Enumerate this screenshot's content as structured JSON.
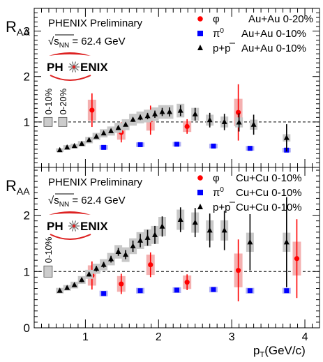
{
  "chart_data": [
    {
      "type": "scatter",
      "panel": "top",
      "ylabel": "R",
      "ylabel_sub": "AA",
      "ylim": [
        0,
        3.5
      ],
      "xlim": [
        0.3,
        4.2
      ],
      "yticks": [
        "1",
        "2",
        "3"
      ],
      "preliminary": "PHENIX Preliminary",
      "energy_prefix": "√s",
      "energy_sub": "NN",
      "energy_suffix": " = 62.4 GeV",
      "logo_left": "PH",
      "logo_right": "ENIX",
      "norm_labels": [
        "0-10%",
        "0-20%"
      ],
      "norm_boxes": [
        0.1,
        0.1
      ],
      "reference_line": 1.0,
      "series": [
        {
          "name_sym": "φ",
          "name_sup": "",
          "name_rest": "",
          "label": "Au+Au 0-20%",
          "marker": "circle",
          "color": "#ff0000",
          "box_color": "#f4b0b0",
          "x": [
            1.09,
            1.49,
            1.89,
            2.39,
            3.09
          ],
          "y": [
            1.26,
            0.77,
            1.04,
            0.9,
            1.21
          ],
          "err": [
            0.37,
            0.22,
            0.32,
            0.16,
            0.62
          ],
          "sys": [
            0.23,
            0.16,
            0.23,
            0.12,
            0.3
          ]
        },
        {
          "name_sym": "π",
          "name_sup": "0",
          "name_rest": "",
          "label": "Au+Au 0-10%",
          "marker": "square",
          "color": "#0000ff",
          "box_color": "#b0b0f4",
          "x": [
            1.25,
            1.75,
            2.25,
            2.75,
            3.25,
            3.75
          ],
          "y": [
            0.44,
            0.5,
            0.51,
            0.47,
            0.42,
            0.38
          ],
          "err": [
            0.02,
            0.02,
            0.02,
            0.03,
            0.03,
            0.03
          ],
          "sys": [
            0.05,
            0.05,
            0.05,
            0.05,
            0.05,
            0.05
          ]
        },
        {
          "name_sym": "p+",
          "name_sup": "",
          "name_rest": "p",
          "label": "Au+Au 0-10%",
          "marker": "triangle",
          "color": "#000000",
          "box_color": "#c8c8c8",
          "x": [
            0.65,
            0.75,
            0.85,
            0.95,
            1.05,
            1.15,
            1.25,
            1.35,
            1.45,
            1.55,
            1.65,
            1.75,
            1.85,
            1.95,
            2.05,
            2.15,
            2.3,
            2.5,
            2.7,
            2.9,
            3.1,
            3.3,
            3.75
          ],
          "y": [
            0.38,
            0.44,
            0.47,
            0.52,
            0.6,
            0.68,
            0.75,
            0.8,
            0.87,
            0.94,
            1.05,
            1.1,
            1.13,
            1.17,
            1.22,
            1.22,
            1.25,
            1.17,
            1.04,
            1.0,
            0.99,
            0.94,
            0.65
          ],
          "err": [
            0.02,
            0.02,
            0.02,
            0.02,
            0.03,
            0.03,
            0.03,
            0.03,
            0.04,
            0.04,
            0.05,
            0.06,
            0.07,
            0.08,
            0.09,
            0.1,
            0.12,
            0.14,
            0.16,
            0.18,
            0.2,
            0.22,
            0.3
          ],
          "sys": [
            0.04,
            0.05,
            0.05,
            0.06,
            0.07,
            0.08,
            0.09,
            0.1,
            0.11,
            0.12,
            0.13,
            0.13,
            0.14,
            0.15,
            0.15,
            0.15,
            0.15,
            0.14,
            0.12,
            0.12,
            0.11,
            0.11,
            0.08
          ]
        }
      ]
    },
    {
      "type": "scatter",
      "panel": "bottom",
      "ylabel": "R",
      "ylabel_sub": "AA",
      "xlabel": "p",
      "xlabel_sub": "T",
      "xlabel_rest": "(GeV/c)",
      "ylim": [
        0,
        2.85
      ],
      "xlim": [
        0.3,
        4.2
      ],
      "xticks": [
        "1",
        "2",
        "3",
        "4"
      ],
      "yticks": [
        "0",
        "1",
        "2"
      ],
      "preliminary": "PHENIX Preliminary",
      "energy_prefix": "√s",
      "energy_sub": "NN",
      "energy_suffix": " = 62.4 GeV",
      "logo_left": "PH",
      "logo_right": "ENIX",
      "norm_labels": [
        "0-10%"
      ],
      "norm_boxes": [
        0.1
      ],
      "reference_line": 1.0,
      "series": [
        {
          "name_sym": "φ",
          "name_sup": "",
          "name_rest": "",
          "label": "Cu+Cu 0-10%",
          "marker": "circle",
          "color": "#ff0000",
          "box_color": "#f4b0b0",
          "x": [
            1.09,
            1.49,
            1.89,
            2.39,
            3.09,
            3.89
          ],
          "y": [
            0.93,
            0.78,
            1.12,
            0.81,
            1.02,
            1.23
          ],
          "err": [
            0.25,
            0.18,
            0.22,
            0.14,
            0.55,
            0.7
          ],
          "sys": [
            0.18,
            0.14,
            0.18,
            0.12,
            0.3,
            0.3
          ]
        },
        {
          "name_sym": "π",
          "name_sup": "0",
          "name_rest": "",
          "label": "Cu+Cu 0-10%",
          "marker": "square",
          "color": "#0000ff",
          "box_color": "#b0b0f4",
          "x": [
            1.25,
            1.75,
            2.25,
            2.75,
            3.25,
            3.75
          ],
          "y": [
            0.61,
            0.66,
            0.67,
            0.68,
            0.66,
            0.66
          ],
          "err": [
            0.02,
            0.02,
            0.02,
            0.03,
            0.03,
            0.03
          ],
          "sys": [
            0.05,
            0.05,
            0.05,
            0.05,
            0.05,
            0.05
          ]
        },
        {
          "name_sym": "p+",
          "name_sup": "",
          "name_rest": "p",
          "label": "Cu+Cu 0-10%",
          "marker": "triangle",
          "color": "#000000",
          "box_color": "#c8c8c8",
          "x": [
            0.65,
            0.75,
            0.85,
            0.95,
            1.05,
            1.15,
            1.25,
            1.35,
            1.45,
            1.55,
            1.65,
            1.75,
            1.85,
            1.95,
            2.05,
            2.3,
            2.5,
            2.7,
            2.9,
            3.25,
            3.75
          ],
          "y": [
            0.66,
            0.71,
            0.76,
            0.85,
            0.95,
            1.05,
            1.12,
            1.22,
            1.35,
            1.3,
            1.45,
            1.55,
            1.6,
            1.65,
            1.8,
            1.92,
            1.87,
            1.73,
            1.73,
            1.52,
            1.52
          ],
          "err": [
            0.03,
            0.03,
            0.03,
            0.04,
            0.04,
            0.05,
            0.05,
            0.06,
            0.07,
            0.08,
            0.1,
            0.12,
            0.14,
            0.16,
            0.18,
            0.22,
            0.26,
            0.3,
            0.35,
            0.5,
            0.8
          ],
          "sys": [
            0.05,
            0.05,
            0.06,
            0.07,
            0.08,
            0.09,
            0.1,
            0.11,
            0.12,
            0.13,
            0.14,
            0.15,
            0.15,
            0.16,
            0.17,
            0.18,
            0.18,
            0.18,
            0.18,
            0.17,
            0.17
          ]
        }
      ]
    }
  ]
}
